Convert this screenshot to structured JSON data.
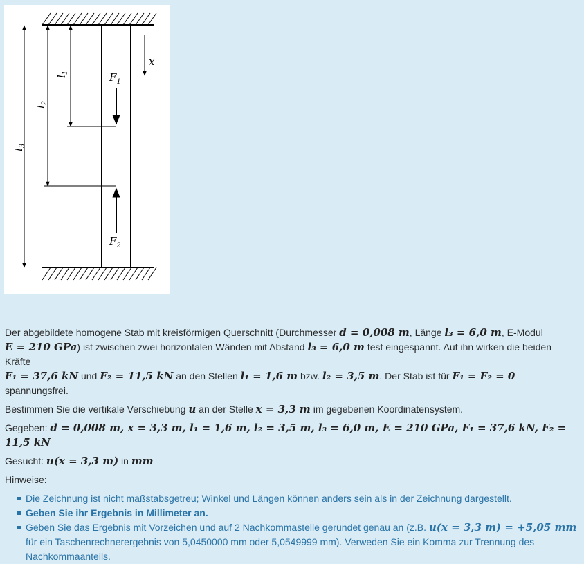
{
  "figure": {
    "label_x": "x",
    "label_l1": "l1",
    "label_l2": "l2",
    "label_l3": "l3",
    "label_F1": "F1",
    "label_F2": "F2"
  },
  "intro": {
    "t1": "Der abgebildete homogene Stab mit kreisförmigen Querschnitt (Durchmesser ",
    "m1": "d = 0,008 m",
    "t2": ", Länge ",
    "m2": "l₃ = 6,0 m",
    "t3": ", E-Modul",
    "m3": "E = 210 GPa",
    "t4": ") ist zwischen zwei horizontalen Wänden mit Abstand ",
    "m4": "l₃ = 6,0 m",
    "t5": " fest eingespannt. Auf ihn wirken die beiden Kräfte",
    "m5": "F₁ = 37,6 kN",
    "t6": " und ",
    "m6": "F₂ = 11,5 kN",
    "t7": " an den Stellen ",
    "m7": "l₁ = 1,6 m",
    "t8": " bzw. ",
    "m8": "l₂ = 3,5 m",
    "t9": ". Der Stab ist für ",
    "m9": "F₁ = F₂ = 0",
    "t10": " spannungsfrei."
  },
  "task": {
    "t1": "Bestimmen Sie die vertikale Verschiebung ",
    "m1": "u",
    "t2": " an der Stelle ",
    "m2": "x = 3,3 m",
    "t3": " im gegebenen Koordinatensystem."
  },
  "given": {
    "label": "Gegeben: ",
    "values": "d = 0,008 m, x = 3,3 m, l₁ = 1,6 m, l₂ = 3,5 m, l₃ = 6,0 m, E = 210 GPa, F₁ = 37,6 kN, F₂ = 11,5 kN"
  },
  "sought": {
    "label": "Gesucht: ",
    "m1": "u(x = 3,3 m)",
    "t1": " in ",
    "m2": "mm"
  },
  "hints": {
    "heading": "Hinweise:",
    "item1": "Die Zeichnung ist nicht maßstabsgetreu; Winkel und Längen können anders sein als in der Zeichnung dargestellt.",
    "item2": "Geben Sie ihr Ergebnis in Millimeter an.",
    "item3_t1": "Geben Sie das Ergebnis mit Vorzeichen und auf 2 Nachkommastelle gerundet genau an (z.B. ",
    "item3_m1": "u(x = 3,3 m) = +5,05 mm",
    "item3_t2": "für ein Taschenrechnerergebnis von 5,0450000 mm oder 5,0549999 mm). Verweden Sie ein Komma zur Trennung des Nachkommaanteils."
  }
}
